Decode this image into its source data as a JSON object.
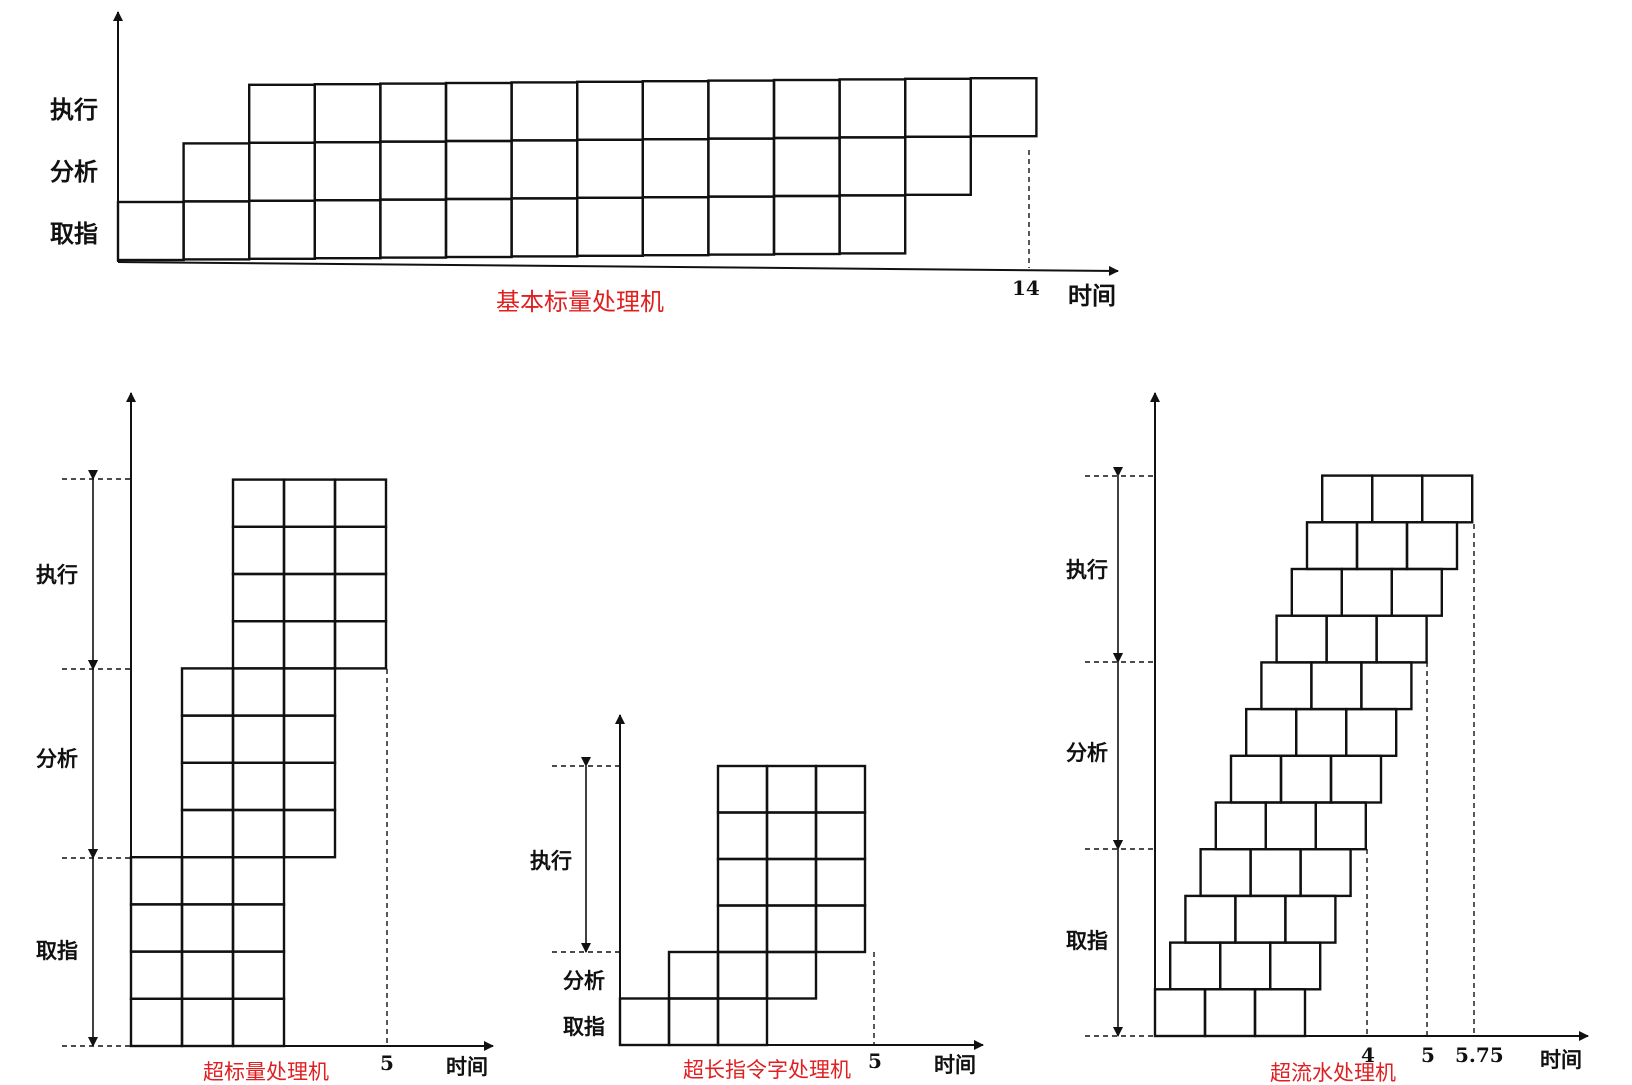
{
  "colors": {
    "ink": "#111111",
    "caption": "#e02020"
  },
  "diagrams": {
    "basic": {
      "caption": "基本标量处理机",
      "stages": [
        "取指",
        "分析",
        "执行"
      ],
      "time_label": "时间",
      "end_tick": "14",
      "instructions": 12
    },
    "superscalar": {
      "caption": "超标量处理机",
      "stages": [
        "取指",
        "分析",
        "执行"
      ],
      "time_label": "时间",
      "end_tick": "5",
      "issue_width": 3,
      "groups": 4
    },
    "vliw": {
      "caption": "超长指令字处理机",
      "stages": [
        "取指",
        "分析",
        "执行"
      ],
      "time_label": "时间",
      "end_tick": "5",
      "ops_per_word": 3,
      "words": 4
    },
    "superpipeline": {
      "caption": "超流水处理机",
      "stages": [
        "取指",
        "分析",
        "执行"
      ],
      "time_label": "时间",
      "ticks": [
        "4",
        "5",
        "5.75"
      ],
      "instructions": 12,
      "substages_per_stage": 4
    }
  }
}
